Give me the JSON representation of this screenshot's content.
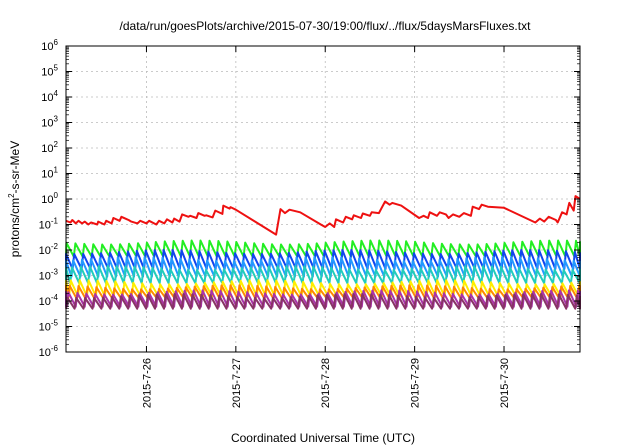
{
  "chart_data": {
    "type": "line",
    "title": "/data/run/goesPlots/archive/2015-07-30/19:00/flux/../flux/5daysMarsFluxes.txt",
    "xlabel": "Coordinated Universal Time (UTC)",
    "ylabel": {
      "base": "protons/cm",
      "sup": "2",
      "rest": "-s-sr-MeV"
    },
    "x_unit": "days",
    "xlim": [
      25.1,
      30.85
    ],
    "ylim": [
      1e-06,
      1000000.0
    ],
    "log_y": true,
    "grid": true,
    "xticks": [
      {
        "x": 26,
        "label": "2015-7-26"
      },
      {
        "x": 27,
        "label": "2015-7-27"
      },
      {
        "x": 28,
        "label": "2015-7-28"
      },
      {
        "x": 29,
        "label": "2015-7-29"
      },
      {
        "x": 30,
        "label": "2015-7-30"
      }
    ],
    "yticks": [
      {
        "v": 1e-06,
        "base": "10",
        "exp": "-6"
      },
      {
        "v": 1e-05,
        "base": "10",
        "exp": "-5"
      },
      {
        "v": 0.0001,
        "base": "10",
        "exp": "-4"
      },
      {
        "v": 0.001,
        "base": "10",
        "exp": "-3"
      },
      {
        "v": 0.01,
        "base": "10",
        "exp": "-2"
      },
      {
        "v": 0.1,
        "base": "10",
        "exp": "-1"
      },
      {
        "v": 1,
        "base": "10",
        "exp": "0"
      },
      {
        "v": 10,
        "base": "10",
        "exp": "1"
      },
      {
        "v": 100,
        "base": "10",
        "exp": "2"
      },
      {
        "v": 1000,
        "base": "10",
        "exp": "3"
      },
      {
        "v": 10000,
        "base": "10",
        "exp": "4"
      },
      {
        "v": 100000,
        "base": "10",
        "exp": "5"
      },
      {
        "v": 1000000,
        "base": "10",
        "exp": "6"
      }
    ],
    "series": [
      {
        "color": "#ee1111",
        "points": [
          [
            25.1,
            0.14
          ],
          [
            25.15,
            0.12
          ],
          [
            25.17,
            0.15
          ],
          [
            25.21,
            0.11
          ],
          [
            25.24,
            0.14
          ],
          [
            25.28,
            0.11
          ],
          [
            25.31,
            0.13
          ],
          [
            25.35,
            0.1
          ],
          [
            25.38,
            0.12
          ],
          [
            25.45,
            0.1
          ],
          [
            25.46,
            0.13
          ],
          [
            25.53,
            0.1
          ],
          [
            25.55,
            0.14
          ],
          [
            25.61,
            0.11
          ],
          [
            25.63,
            0.18
          ],
          [
            25.7,
            0.14
          ],
          [
            25.72,
            0.2
          ],
          [
            25.8,
            0.15
          ],
          [
            25.83,
            0.13
          ],
          [
            25.9,
            0.11
          ],
          [
            25.93,
            0.14
          ],
          [
            26.0,
            0.11
          ],
          [
            26.03,
            0.14
          ],
          [
            26.11,
            0.1
          ],
          [
            26.14,
            0.14
          ],
          [
            26.2,
            0.11
          ],
          [
            26.23,
            0.16
          ],
          [
            26.29,
            0.12
          ],
          [
            26.31,
            0.17
          ],
          [
            26.37,
            0.13
          ],
          [
            26.4,
            0.25
          ],
          [
            26.47,
            0.2
          ],
          [
            26.49,
            0.22
          ],
          [
            26.56,
            0.18
          ],
          [
            26.58,
            0.28
          ],
          [
            26.65,
            0.22
          ],
          [
            26.67,
            0.23
          ],
          [
            26.74,
            0.19
          ],
          [
            26.77,
            0.35
          ],
          [
            26.85,
            0.26
          ],
          [
            26.86,
            0.55
          ],
          [
            26.93,
            0.42
          ],
          [
            26.94,
            0.48
          ],
          [
            27.0,
            0.38
          ],
          [
            27.45,
            0.04
          ],
          [
            27.5,
            0.4
          ],
          [
            27.55,
            0.28
          ],
          [
            27.6,
            0.38
          ],
          [
            27.72,
            0.3
          ],
          [
            27.95,
            0.1
          ],
          [
            28.0,
            0.08
          ],
          [
            28.05,
            0.11
          ],
          [
            28.1,
            0.08
          ],
          [
            28.12,
            0.16
          ],
          [
            28.2,
            0.12
          ],
          [
            28.23,
            0.2
          ],
          [
            28.3,
            0.16
          ],
          [
            28.32,
            0.23
          ],
          [
            28.4,
            0.18
          ],
          [
            28.42,
            0.27
          ],
          [
            28.5,
            0.22
          ],
          [
            28.52,
            0.3
          ],
          [
            28.6,
            0.28
          ],
          [
            28.67,
            0.8
          ],
          [
            28.72,
            0.6
          ],
          [
            28.75,
            0.7
          ],
          [
            28.85,
            0.55
          ],
          [
            29.05,
            0.18
          ],
          [
            29.1,
            0.22
          ],
          [
            29.15,
            0.18
          ],
          [
            29.17,
            0.3
          ],
          [
            29.25,
            0.22
          ],
          [
            29.28,
            0.3
          ],
          [
            29.35,
            0.25
          ],
          [
            29.38,
            0.18
          ],
          [
            29.43,
            0.25
          ],
          [
            29.5,
            0.2
          ],
          [
            29.55,
            0.28
          ],
          [
            29.63,
            0.22
          ],
          [
            29.65,
            0.5
          ],
          [
            29.72,
            0.4
          ],
          [
            29.75,
            0.6
          ],
          [
            29.82,
            0.5
          ],
          [
            30.0,
            0.45
          ],
          [
            30.35,
            0.12
          ],
          [
            30.4,
            0.17
          ],
          [
            30.45,
            0.13
          ],
          [
            30.5,
            0.2
          ],
          [
            30.58,
            0.15
          ],
          [
            30.6,
            0.12
          ],
          [
            30.65,
            0.3
          ],
          [
            30.7,
            0.25
          ],
          [
            30.73,
            0.7
          ],
          [
            30.78,
            0.35
          ],
          [
            30.8,
            1.3
          ],
          [
            30.85,
            1.0
          ]
        ]
      },
      {
        "color": "#22ee22",
        "sawtooth": {
          "period": 0.1,
          "low": 0.0055,
          "high": 0.02
        }
      },
      {
        "color": "#1144ee",
        "sawtooth": {
          "period": 0.1,
          "low": 0.0018,
          "high": 0.0085
        }
      },
      {
        "color": "#2299ff",
        "sawtooth": {
          "period": 0.1,
          "low": 0.0009,
          "high": 0.0045
        }
      },
      {
        "color": "#22ccbb",
        "sawtooth": {
          "period": 0.1,
          "low": 0.0005,
          "high": 0.002
        }
      },
      {
        "color": "#ffee00",
        "sawtooth": {
          "period": 0.1,
          "low": 0.00015,
          "high": 0.00055
        }
      },
      {
        "color": "#ff8800",
        "sawtooth": {
          "period": 0.1,
          "low": 0.00012,
          "high": 0.00035
        }
      },
      {
        "color": "#aa33aa",
        "sawtooth": {
          "period": 0.1,
          "low": 6e-05,
          "high": 0.00022
        }
      },
      {
        "color": "#883366",
        "sawtooth": {
          "period": 0.1,
          "low": 5e-05,
          "high": 0.00016
        }
      }
    ]
  }
}
